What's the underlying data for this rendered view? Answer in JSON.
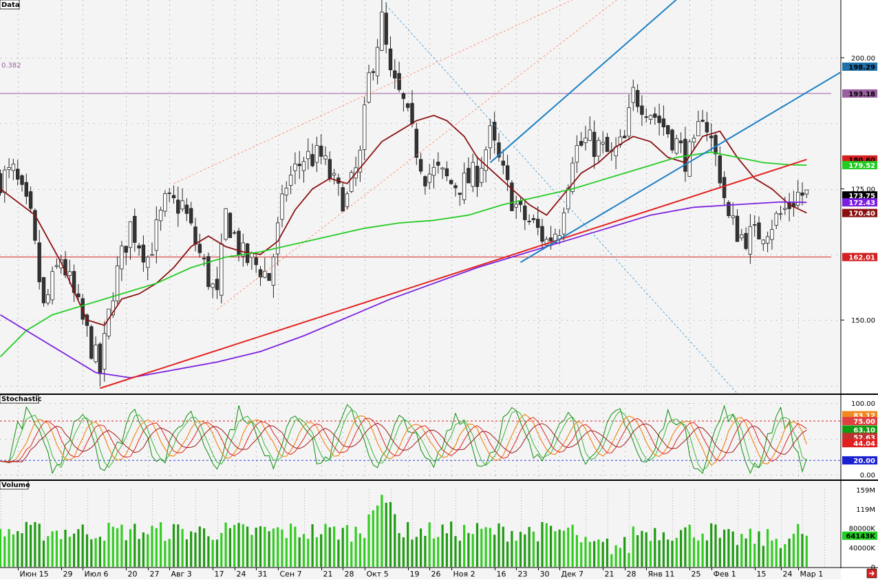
{
  "panels": {
    "price_title": "Data",
    "stoch_title": "Stochastic",
    "volume_title": "Volume"
  },
  "fib_label": "0.382",
  "x_labels": [
    {
      "label": "Июн 15",
      "bar": 4
    },
    {
      "label": "29",
      "bar": 14
    },
    {
      "label": "Июл 6",
      "bar": 19
    },
    {
      "label": "20",
      "bar": 29
    },
    {
      "label": "27",
      "bar": 34
    },
    {
      "label": "Авг 3",
      "bar": 39
    },
    {
      "label": "17",
      "bar": 49
    },
    {
      "label": "24",
      "bar": 54
    },
    {
      "label": "31",
      "bar": 59
    },
    {
      "label": "Сен 7",
      "bar": 64
    },
    {
      "label": "21",
      "bar": 74
    },
    {
      "label": "28",
      "bar": 79
    },
    {
      "label": "Окт 5",
      "bar": 84
    },
    {
      "label": "19",
      "bar": 94
    },
    {
      "label": "26",
      "bar": 99
    },
    {
      "label": "Ноя 2",
      "bar": 104
    },
    {
      "label": "16",
      "bar": 114
    },
    {
      "label": "23",
      "bar": 119
    },
    {
      "label": "30",
      "bar": 124
    },
    {
      "label": "Дек 7",
      "bar": 129
    },
    {
      "label": "21",
      "bar": 139
    },
    {
      "label": "28",
      "bar": 144
    },
    {
      "label": "Янв 11",
      "bar": 149
    },
    {
      "label": "25",
      "bar": 159
    },
    {
      "label": "Фев 1",
      "bar": 164
    },
    {
      "label": "15",
      "bar": 174
    },
    {
      "label": "24",
      "bar": 180
    },
    {
      "label": "Мар 1",
      "bar": 184
    }
  ],
  "price_axis": {
    "ticks": [
      "200.00",
      "175.00",
      "150.00"
    ]
  },
  "price_badges": [
    {
      "text": "198.29",
      "value": 198.29,
      "color": "#1f6fa8",
      "fg": "#000000"
    },
    {
      "text": "193.18",
      "value": 193.18,
      "color": "#9a5fa0",
      "fg": "#000000"
    },
    {
      "text": "180.60",
      "value": 180.6,
      "color": "#d42020",
      "fg": "#000000"
    },
    {
      "text": "179.52",
      "value": 179.52,
      "color": "#22cc22",
      "fg": "#ffffff"
    },
    {
      "text": "173.75",
      "value": 173.75,
      "color": "#000000",
      "fg": "#ffffff"
    },
    {
      "text": "172.43",
      "value": 172.43,
      "color": "#7a1fe0",
      "fg": "#ffffff"
    },
    {
      "text": "170.40",
      "value": 170.4,
      "color": "#8a1010",
      "fg": "#ffffff"
    },
    {
      "text": "162.01",
      "value": 162.01,
      "color": "#d42020",
      "fg": "#ffffff"
    }
  ],
  "stoch_axis": {
    "ticks": [
      "100.00",
      "0.00"
    ]
  },
  "stoch_badges": [
    {
      "text": "83.12",
      "value": 83.12,
      "color": "#f08a20",
      "fg": "#ffffff"
    },
    {
      "text": "75.00",
      "value": 75,
      "color": "#e04040",
      "fg": "#ffffff"
    },
    {
      "text": "63.10",
      "value": 63.1,
      "color": "#129a12",
      "fg": "#ffffff"
    },
    {
      "text": "52.63",
      "value": 52.63,
      "color": "#c03030",
      "fg": "#ffffff"
    },
    {
      "text": "44.04",
      "value": 44.04,
      "color": "#e02020",
      "fg": "#ffffff"
    },
    {
      "text": "20.00",
      "value": 20,
      "color": "#1a22d0",
      "fg": "#ffffff"
    }
  ],
  "volume_axis": {
    "ticks": [
      "159M",
      "119M",
      "80000K",
      "40000K",
      "0"
    ]
  },
  "volume_badge": {
    "text": "64143K",
    "value": 64143,
    "color": "#22cc22",
    "fg": "#000000"
  },
  "corner_icon": "scroll-to-end-icon",
  "chart_data": {
    "type": "candlestick",
    "title": "Data",
    "n_bars": 190,
    "ylim": [
      136,
      211
    ],
    "horizontal_levels": [
      {
        "name": "0.382",
        "value": 193.18,
        "color": "#9a5fa0"
      },
      {
        "name": "support",
        "value": 162.01,
        "color": "#d42020"
      }
    ],
    "price_path": [
      [
        0,
        177
      ],
      [
        3,
        178
      ],
      [
        7,
        169
      ],
      [
        10,
        152
      ],
      [
        14,
        162
      ],
      [
        18,
        152
      ],
      [
        21,
        145
      ],
      [
        23,
        140
      ],
      [
        26,
        156
      ],
      [
        30,
        168
      ],
      [
        34,
        162
      ],
      [
        38,
        172
      ],
      [
        42,
        172
      ],
      [
        44,
        167
      ],
      [
        48,
        158
      ],
      [
        50,
        154
      ],
      [
        52,
        170
      ],
      [
        56,
        162
      ],
      [
        60,
        160
      ],
      [
        62,
        158
      ],
      [
        66,
        176
      ],
      [
        70,
        181
      ],
      [
        74,
        181
      ],
      [
        78,
        174
      ],
      [
        80,
        173
      ],
      [
        83,
        181
      ],
      [
        85,
        196
      ],
      [
        88,
        207
      ],
      [
        90,
        196
      ],
      [
        93,
        191
      ],
      [
        95,
        185
      ],
      [
        98,
        178
      ],
      [
        101,
        178
      ],
      [
        104,
        176
      ],
      [
        107,
        176
      ],
      [
        110,
        178
      ],
      [
        113,
        185
      ],
      [
        117,
        175
      ],
      [
        120,
        170
      ],
      [
        123,
        168
      ],
      [
        126,
        165
      ],
      [
        129,
        168
      ],
      [
        132,
        182
      ],
      [
        135,
        184
      ],
      [
        138,
        183
      ],
      [
        141,
        181
      ],
      [
        144,
        184
      ],
      [
        146,
        193
      ],
      [
        149,
        191
      ],
      [
        152,
        188
      ],
      [
        155,
        185
      ],
      [
        158,
        181
      ],
      [
        160,
        182
      ],
      [
        162,
        190
      ],
      [
        164,
        184
      ],
      [
        166,
        178
      ],
      [
        168,
        169
      ],
      [
        171,
        166
      ],
      [
        174,
        166
      ],
      [
        177,
        168
      ],
      [
        180,
        170
      ],
      [
        184,
        174
      ],
      [
        186,
        173.75
      ]
    ],
    "overlays": [
      {
        "name": "ma_fast",
        "color": "#8a1010",
        "values": [
          [
            0,
            175
          ],
          [
            8,
            170
          ],
          [
            14,
            161
          ],
          [
            20,
            150
          ],
          [
            24,
            149
          ],
          [
            28,
            154
          ],
          [
            32,
            155
          ],
          [
            36,
            157
          ],
          [
            40,
            160
          ],
          [
            44,
            164
          ],
          [
            48,
            166
          ],
          [
            52,
            164
          ],
          [
            56,
            163
          ],
          [
            60,
            162.5
          ],
          [
            64,
            165
          ],
          [
            68,
            171
          ],
          [
            72,
            175
          ],
          [
            76,
            177
          ],
          [
            80,
            176
          ],
          [
            84,
            180
          ],
          [
            88,
            184
          ],
          [
            92,
            186
          ],
          [
            96,
            188
          ],
          [
            100,
            189
          ],
          [
            103,
            188
          ],
          [
            107,
            185
          ],
          [
            110,
            181
          ],
          [
            114,
            178
          ],
          [
            118,
            175
          ],
          [
            122,
            172
          ],
          [
            126,
            170
          ],
          [
            130,
            174
          ],
          [
            134,
            178
          ],
          [
            138,
            180
          ],
          [
            142,
            183
          ],
          [
            146,
            185
          ],
          [
            150,
            184
          ],
          [
            154,
            181
          ],
          [
            158,
            180
          ],
          [
            162,
            185
          ],
          [
            166,
            186
          ],
          [
            170,
            181
          ],
          [
            174,
            177
          ],
          [
            178,
            175
          ],
          [
            182,
            172
          ],
          [
            186,
            170.4
          ]
        ]
      },
      {
        "name": "ma_mid",
        "color": "#22cc22",
        "values": [
          [
            0,
            143
          ],
          [
            6,
            148
          ],
          [
            12,
            151
          ],
          [
            20,
            153
          ],
          [
            28,
            155
          ],
          [
            36,
            157
          ],
          [
            44,
            160
          ],
          [
            52,
            162
          ],
          [
            60,
            163
          ],
          [
            68,
            164.5
          ],
          [
            76,
            166
          ],
          [
            84,
            167.5
          ],
          [
            92,
            168.5
          ],
          [
            100,
            169
          ],
          [
            108,
            170
          ],
          [
            116,
            172
          ],
          [
            124,
            173.5
          ],
          [
            132,
            175
          ],
          [
            140,
            177
          ],
          [
            148,
            179
          ],
          [
            156,
            181
          ],
          [
            164,
            182
          ],
          [
            170,
            181
          ],
          [
            176,
            180
          ],
          [
            182,
            179.6
          ],
          [
            186,
            179.52
          ]
        ]
      },
      {
        "name": "ma_slow",
        "color": "#7a1fe0",
        "values": [
          [
            0,
            151
          ],
          [
            8,
            147
          ],
          [
            16,
            143
          ],
          [
            22,
            140
          ],
          [
            30,
            139
          ],
          [
            40,
            140.5
          ],
          [
            50,
            142
          ],
          [
            60,
            144
          ],
          [
            70,
            147
          ],
          [
            80,
            150.5
          ],
          [
            90,
            154
          ],
          [
            100,
            157
          ],
          [
            110,
            160
          ],
          [
            120,
            162.5
          ],
          [
            130,
            165
          ],
          [
            140,
            167.5
          ],
          [
            150,
            170
          ],
          [
            160,
            171.5
          ],
          [
            170,
            172
          ],
          [
            180,
            172.5
          ],
          [
            186,
            172.43
          ]
        ]
      }
    ],
    "trend_lines": [
      {
        "name": "red-trendline",
        "color": "#e32020",
        "points": [
          [
            23,
            137
          ],
          [
            186,
            180.6
          ]
        ]
      },
      {
        "name": "blue-channel-lower",
        "color": "#1c7fc4",
        "points": [
          [
            120,
            161
          ],
          [
            196,
            198.29
          ]
        ]
      },
      {
        "name": "blue-channel-upper",
        "color": "#1c7fc4",
        "points": [
          [
            113,
            180
          ],
          [
            160,
            214
          ]
        ]
      },
      {
        "name": "orange-dotted-lower",
        "color": "#ff8a6a",
        "points": [
          [
            50,
            152
          ],
          [
            150,
            216
          ]
        ]
      },
      {
        "name": "orange-dotted-upper",
        "color": "#ff8a6a",
        "points": [
          [
            40,
            176
          ],
          [
            145,
            216
          ]
        ]
      },
      {
        "name": "blue-dotted-diagonal",
        "color": "#3aa0e0",
        "points": [
          [
            89,
            210
          ],
          [
            170,
            136
          ]
        ]
      }
    ],
    "stochastic": {
      "ylim": [
        0,
        100
      ],
      "levels": [
        {
          "value": 75,
          "color": "#d42020"
        },
        {
          "value": 20,
          "color": "#1a22d0"
        }
      ],
      "cycle_highs": [
        83,
        90,
        88,
        85,
        88,
        90,
        88,
        78,
        85,
        86,
        88,
        90,
        86,
        88,
        83
      ],
      "cycle_lows": [
        12,
        5,
        18,
        22,
        20,
        15,
        20,
        12,
        10,
        22,
        18,
        15,
        15,
        8,
        12
      ],
      "final_values": {
        "orange": 83.12,
        "green": 63.1,
        "red": 44.04,
        "dark_red": 52.63
      }
    },
    "volume": {
      "unit": "K",
      "ylim": [
        0,
        170000
      ],
      "last": 64143
    }
  }
}
